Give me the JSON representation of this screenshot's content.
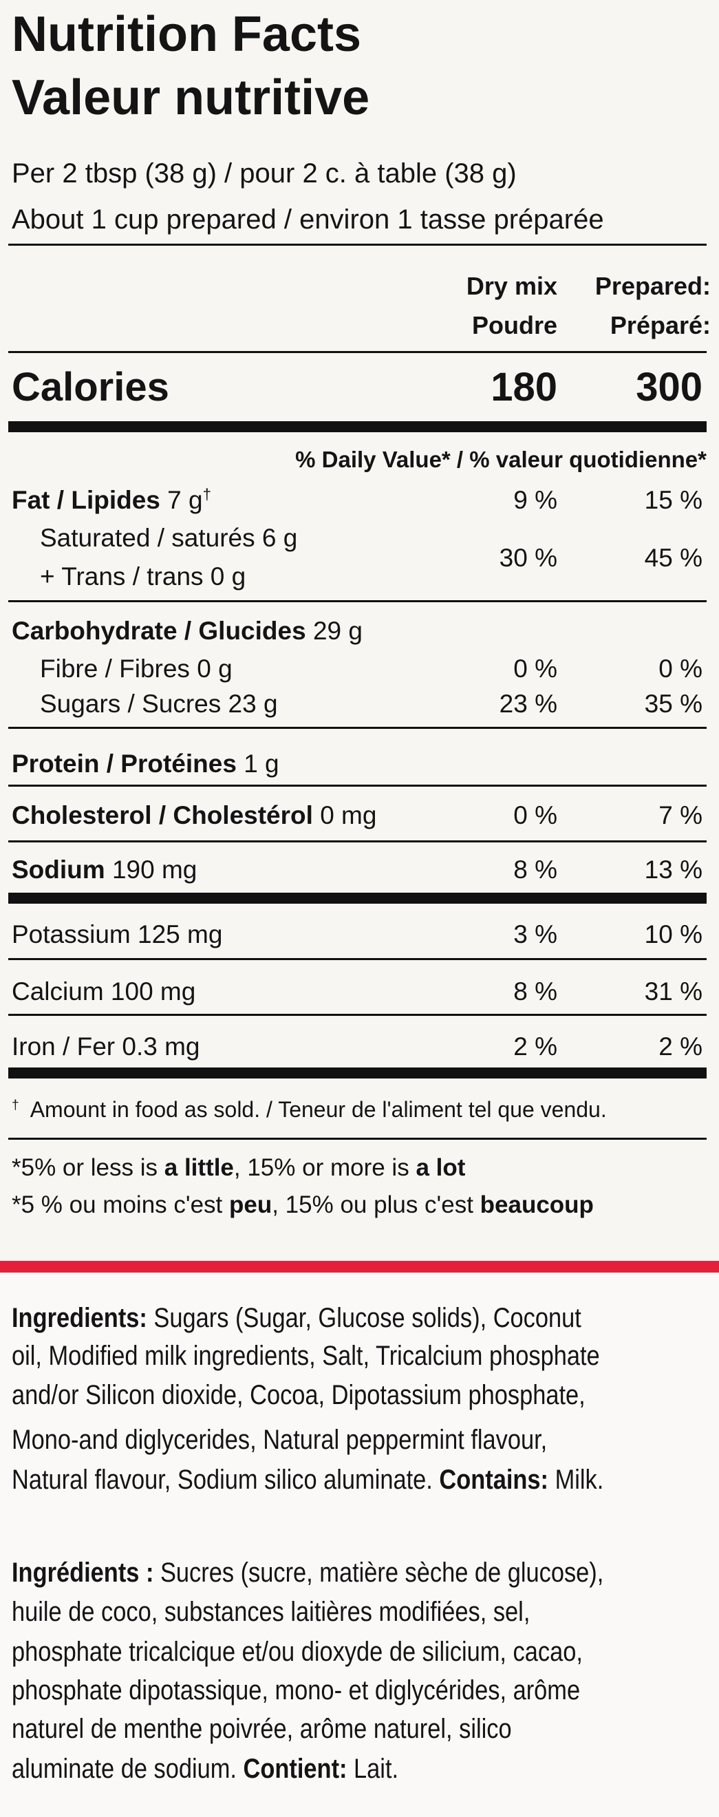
{
  "header": {
    "title": "Nutrition Facts",
    "subtitle": "Valeur nutritive"
  },
  "serving": {
    "line1": "Per 2 tbsp (38 g) / pour 2 c. à table (38 g)",
    "line2": "About 1 cup prepared / environ 1 tasse préparée"
  },
  "columns": {
    "dry": [
      "Dry mix",
      "Poudre"
    ],
    "prepared": [
      "Prepared:",
      "Préparé:"
    ]
  },
  "calories": {
    "label": "Calories",
    "dry": 180,
    "prepared": 300
  },
  "daily_value_heading": "% Daily Value* / % valeur quotidienne*",
  "rows": {
    "fat": {
      "name": "Fat / Lipides",
      "amount": " 7 g",
      "note": "†",
      "dry": "9 %",
      "prepared": "15 %"
    },
    "saturated": {
      "name": "Saturated / saturés 6 g",
      "name2": "+ Trans / trans 0 g",
      "dry": "30 %",
      "prepared": "45 %"
    },
    "carbohydrate": {
      "name": "Carbohydrate / Glucides",
      "amount": " 29 g"
    },
    "fibre": {
      "name": "Fibre / Fibres 0 g",
      "dry": "0 %",
      "prepared": "0 %"
    },
    "sugars": {
      "name": "Sugars / Sucres 23 g",
      "dry": "23 %",
      "prepared": "35 %"
    },
    "protein": {
      "name": "Protein / Protéines",
      "amount": " 1 g"
    },
    "cholesterol": {
      "name": "Cholesterol / Cholestérol",
      "amount": " 0 mg",
      "dry": "0 %",
      "prepared": "7 %"
    },
    "sodium": {
      "name": "Sodium",
      "amount": " 190 mg",
      "dry": "8 %",
      "prepared": "13 %"
    },
    "potassium": {
      "name": "Potassium 125 mg",
      "dry": "3 %",
      "prepared": "10 %"
    },
    "calcium": {
      "name": "Calcium 100 mg",
      "dry": "8 %",
      "prepared": "31 %"
    },
    "iron": {
      "name": "Iron / Fer 0.3 mg",
      "dry": "2 %",
      "prepared": "2 %"
    }
  },
  "footnote": {
    "mark": "†",
    "text": "Amount in food as sold. / Teneur de l'aliment tel que vendu."
  },
  "dv_note": {
    "en": [
      "*5% or less is ",
      "a little",
      ", 15% or more is ",
      "a lot"
    ],
    "fr": [
      "*5 % ou moins c'est ",
      "peu",
      ", 15% ou plus c'est ",
      "beaucoup"
    ]
  },
  "ingredients_en": {
    "label": "Ingredients:",
    "lines": [
      " Sugars (Sugar, Glucose solids), Coconut",
      "oil, Modified milk ingredients, Salt, Tricalcium phosphate",
      "and/or Silicon dioxide, Cocoa, Dipotassium phosphate,",
      "Mono-and diglycerides, Natural peppermint flavour,",
      "Natural flavour, Sodium silico aluminate. "
    ],
    "contains_label": "Contains:",
    "contains": " Milk."
  },
  "ingredients_fr": {
    "label": "Ingrédients :",
    "lines": [
      " Sucres (sucre, matière sèche de glucose),",
      "huile de coco, substances laitières modifiées, sel,",
      "phosphate tricalcique et/ou dioxyde de silicium, cacao,",
      "phosphate dipotassique, mono- et diglycérides, arôme",
      "naturel de menthe poivrée, arôme naturel, silico",
      "aluminate de sodium. "
    ],
    "contains_label": "Contient:",
    "contains": " Lait."
  }
}
